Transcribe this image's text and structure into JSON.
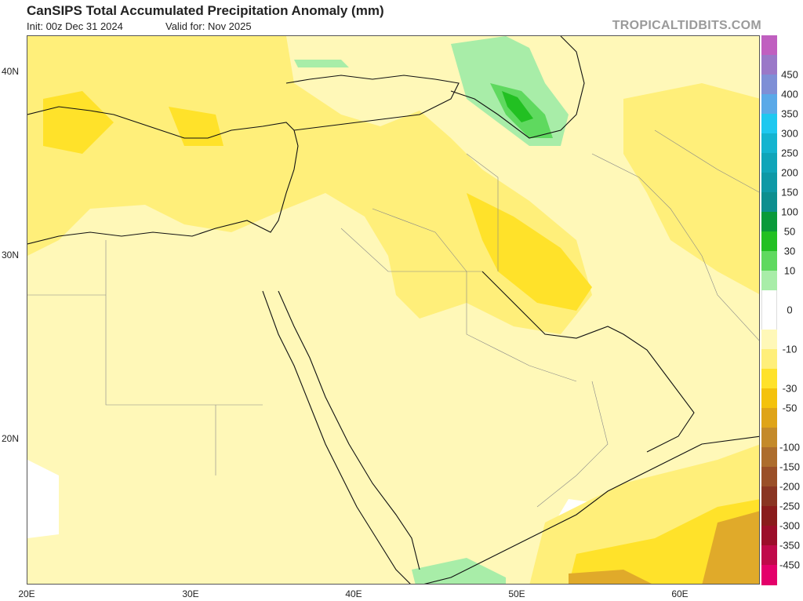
{
  "header": {
    "title": "CanSIPS Total Accumulated Precipitation Anomaly (mm)",
    "init": "Init: 00z Dec 31 2024",
    "valid": "Valid for: Nov 2025",
    "brand": "TROPICALTIDBITS.COM"
  },
  "map": {
    "lat_ticks": [
      "40N",
      "30N",
      "20N"
    ],
    "lon_ticks": [
      "20E",
      "30E",
      "40E",
      "50E",
      "60E"
    ]
  },
  "colorbar": {
    "levels": [
      {
        "label": "",
        "color": "#c05fc0"
      },
      {
        "label": "450",
        "color": "#9a78c8"
      },
      {
        "label": "400",
        "color": "#7e8fd6"
      },
      {
        "label": "350",
        "color": "#5aa9e8"
      },
      {
        "label": "300",
        "color": "#1ec8f0"
      },
      {
        "label": "250",
        "color": "#14b4d0"
      },
      {
        "label": "200",
        "color": "#10a5b9"
      },
      {
        "label": "150",
        "color": "#0e99a6"
      },
      {
        "label": "100",
        "color": "#0d8f8f"
      },
      {
        "label": "50",
        "color": "#0a9a3a"
      },
      {
        "label": "30",
        "color": "#22c022"
      },
      {
        "label": "10",
        "color": "#5fd95f"
      },
      {
        "label": "",
        "color": "#a8eda8"
      },
      {
        "label": "0",
        "color": "#ffffff"
      },
      {
        "label": "",
        "color": "#ffffff"
      },
      {
        "label": "-10",
        "color": "#fff8b8"
      },
      {
        "label": "",
        "color": "#ffef7a"
      },
      {
        "label": "-30",
        "color": "#ffe22a"
      },
      {
        "label": "-50",
        "color": "#f4c20c"
      },
      {
        "label": "",
        "color": "#dfa418"
      },
      {
        "label": "-100",
        "color": "#c48a2a"
      },
      {
        "label": "-150",
        "color": "#ad6d2d"
      },
      {
        "label": "-200",
        "color": "#9a4f28"
      },
      {
        "label": "-250",
        "color": "#8a3522"
      },
      {
        "label": "-300",
        "color": "#8a1c1c"
      },
      {
        "label": "-350",
        "color": "#9c0e2a"
      },
      {
        "label": "-450",
        "color": "#c00a4a"
      },
      {
        "label": "",
        "color": "#e4006a"
      }
    ]
  }
}
